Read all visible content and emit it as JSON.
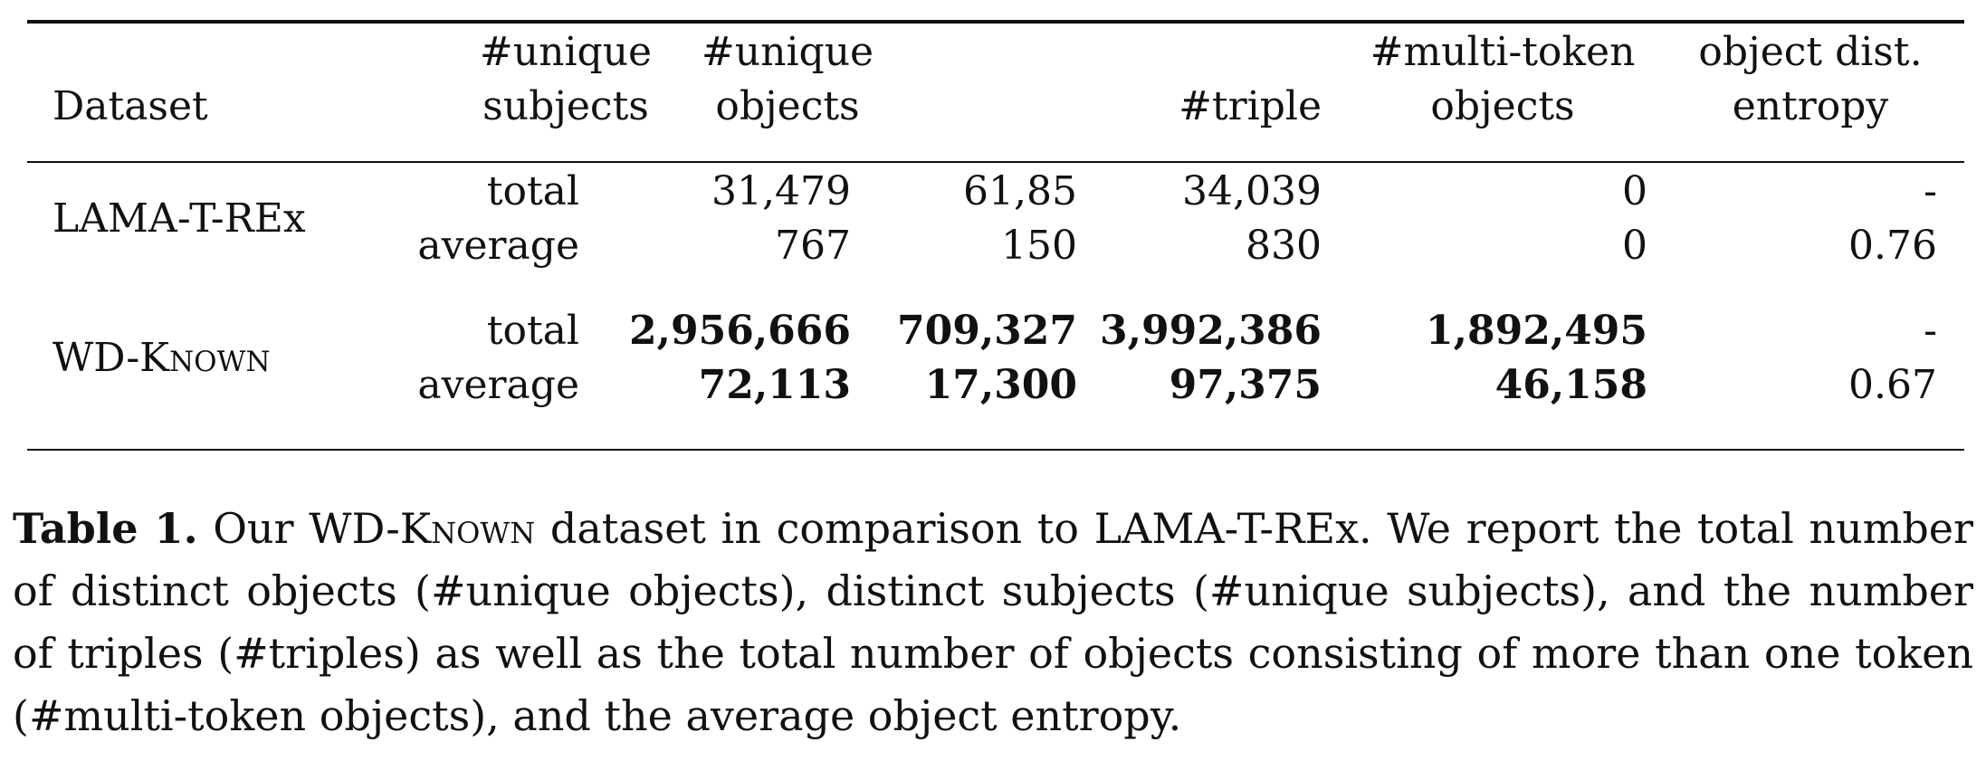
{
  "table": {
    "headers": {
      "dataset": "Dataset",
      "unique_subjects": [
        "#unique",
        "subjects"
      ],
      "unique_objects": [
        "#unique",
        "objects"
      ],
      "triple": "#triple",
      "multi_token": [
        "#multi-token",
        "objects"
      ],
      "entropy": [
        "object dist.",
        "entropy"
      ]
    },
    "rows": [
      {
        "dataset": "LAMA-T-REx",
        "entries": [
          {
            "label": "total",
            "unique_subjects": "31,479",
            "unique_objects": "61,85",
            "triple": "34,039",
            "multi_token": "0",
            "entropy": "-"
          },
          {
            "label": "average",
            "unique_subjects": "767",
            "unique_objects": "150",
            "triple": "830",
            "multi_token": "0",
            "entropy": "0.76"
          }
        ]
      },
      {
        "dataset": "WD-Known",
        "entries": [
          {
            "label": "total",
            "unique_subjects": "2,956,666",
            "unique_objects": "709,327",
            "triple": "3,992,386",
            "multi_token": "1,892,495",
            "entropy": "-"
          },
          {
            "label": "average",
            "unique_subjects": "72,113",
            "unique_objects": "17,300",
            "triple": "97,375",
            "multi_token": "46,158",
            "entropy": "0.67"
          }
        ]
      }
    ]
  },
  "caption": {
    "label": "Table 1.",
    "text_part1": " Our ",
    "dataset_name": "WD-Known",
    "text_part2": " dataset in comparison to LAMA-T-REx. We report the total number of distinct objects (#unique objects), distinct subjects (#unique subjects), and the number of triples (#triples) as well as the total number of objects consisting of more than one token (#multi-token objects), and the average object entropy."
  }
}
